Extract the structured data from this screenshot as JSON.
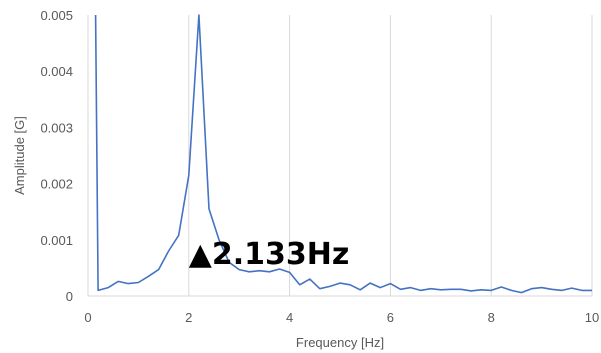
{
  "chart_data": {
    "type": "line",
    "title": "",
    "xlabel": "Frequency [Hz]",
    "ylabel": "Amplitude [G]",
    "xlim": [
      0,
      10
    ],
    "ylim": [
      0,
      0.005
    ],
    "grid": "vertical",
    "legend": "none",
    "x_ticks": [
      "0",
      "2",
      "4",
      "6",
      "8",
      "10"
    ],
    "y_ticks": [
      "0",
      "0.001",
      "0.002",
      "0.003",
      "0.004",
      "0.005"
    ],
    "x_tick_values": [
      0,
      2,
      4,
      6,
      8,
      10
    ],
    "y_tick_values": [
      0,
      0.001,
      0.002,
      0.003,
      0.004,
      0.005
    ],
    "line_color": "#4472c4",
    "grid_color": "#d9d9d9",
    "series": [
      {
        "x": [
          0.15,
          0.2,
          0.4,
          0.6,
          0.8,
          1.0,
          1.2,
          1.4,
          1.6,
          1.8,
          2.0,
          2.2,
          2.4,
          2.6,
          2.8,
          3.0,
          3.2,
          3.4,
          3.6,
          3.8,
          4.0,
          4.2,
          4.4,
          4.6,
          4.8,
          5.0,
          5.2,
          5.4,
          5.6,
          5.8,
          6.0,
          6.2,
          6.4,
          6.6,
          6.8,
          7.0,
          7.2,
          7.4,
          7.6,
          7.8,
          8.0,
          8.2,
          8.4,
          8.6,
          8.8,
          9.0,
          9.2,
          9.4,
          9.6,
          9.8,
          10.0
        ],
        "y": [
          0.005,
          0.0001,
          0.00015,
          0.00026,
          0.00022,
          0.00024,
          0.00035,
          0.00047,
          0.0008,
          0.00108,
          0.00215,
          0.005,
          0.00155,
          0.001,
          0.0006,
          0.00047,
          0.00043,
          0.00045,
          0.00043,
          0.00048,
          0.00042,
          0.0002,
          0.0003,
          0.00013,
          0.00017,
          0.00023,
          0.0002,
          0.00011,
          0.00023,
          0.00015,
          0.00022,
          0.00012,
          0.00015,
          0.0001,
          0.00013,
          0.00011,
          0.00012,
          0.00012,
          9e-05,
          0.00011,
          0.0001,
          0.00016,
          0.0001,
          6e-05,
          0.00013,
          0.00015,
          0.00012,
          0.0001,
          0.00014,
          0.0001,
          0.0001
        ]
      }
    ],
    "annotation": {
      "text": "▲2.133Hz",
      "x": 2.0,
      "y": 0.00075
    }
  }
}
